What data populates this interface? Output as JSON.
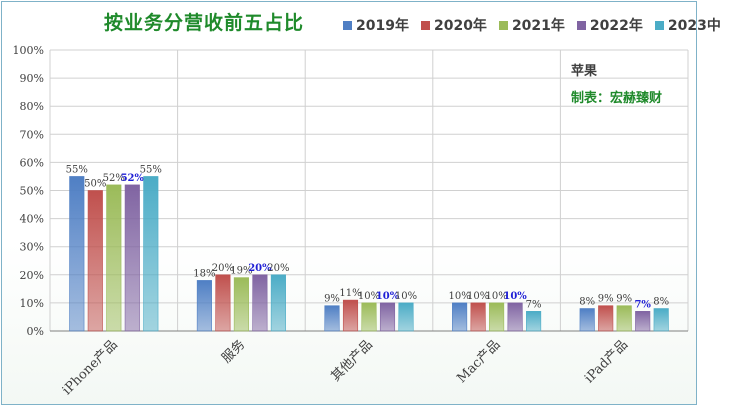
{
  "chart_data": {
    "type": "bar",
    "title": "按业务分营收前五占比",
    "company": "苹果",
    "maker": "制表：宏赫臻财",
    "categories": [
      "iPhone产品",
      "服务",
      "其他产品",
      "Mac产品",
      "iPad产品"
    ],
    "ylim": [
      0,
      100
    ],
    "yticks": [
      "0%",
      "10%",
      "20%",
      "30%",
      "40%",
      "50%",
      "60%",
      "70%",
      "80%",
      "90%",
      "100%"
    ],
    "grid": true,
    "legend_position": "top-right",
    "series": [
      {
        "name": "2019年",
        "values": [
          55,
          18,
          9,
          10,
          8
        ],
        "labels": [
          "55%",
          "18%",
          "9%",
          "10%",
          "8%"
        ],
        "color": "#4f7fc4"
      },
      {
        "name": "2020年",
        "values": [
          50,
          20,
          11,
          10,
          9
        ],
        "labels": [
          "50%",
          "20%",
          "11%",
          "10%",
          "9%"
        ],
        "color": "#c0504d"
      },
      {
        "name": "2021年",
        "values": [
          52,
          19,
          10,
          10,
          9
        ],
        "labels": [
          "52%",
          "19%",
          "10%",
          "10%",
          "9%"
        ],
        "color": "#9bbb59"
      },
      {
        "name": "2022年",
        "values": [
          52,
          20,
          10,
          10,
          7
        ],
        "labels": [
          "52%",
          "20%",
          "10%",
          "10%",
          "7%"
        ],
        "color": "#8064a2",
        "label_color": "#1f1fd6"
      },
      {
        "name": "2023中",
        "values": [
          55,
          20,
          10,
          7,
          8
        ],
        "labels": [
          "55%",
          "20%",
          "10%",
          "7%",
          "8%"
        ],
        "color": "#4bacc6"
      }
    ]
  }
}
